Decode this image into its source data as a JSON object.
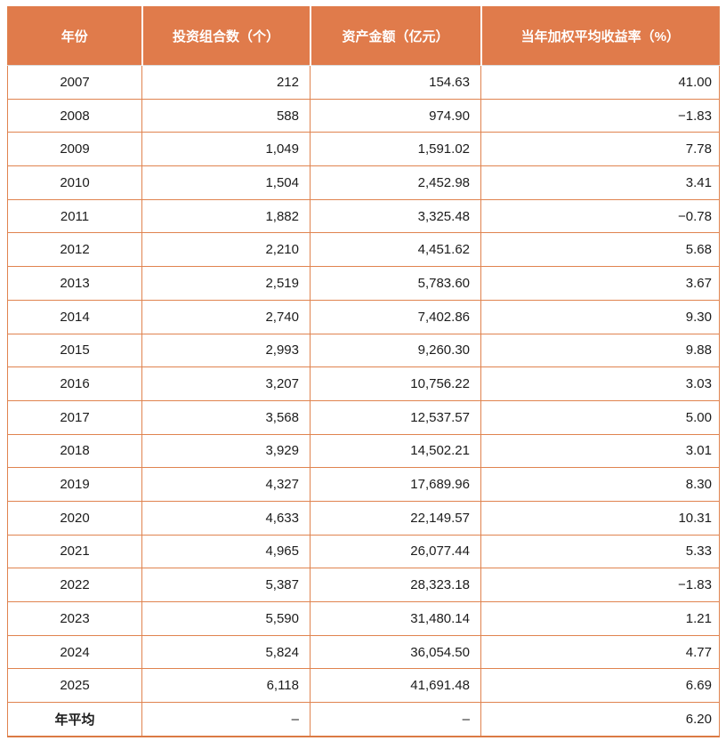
{
  "colors": {
    "header_bg": "#E07B4B",
    "header_text": "#FFFFFF",
    "grid_border": "#E0834F",
    "bottom_border": "#DB7A44",
    "body_text": "#1C1C1C"
  },
  "table": {
    "columns": [
      {
        "label": "年份"
      },
      {
        "label": "投资组合数（个）"
      },
      {
        "label": "资产金额（亿元）"
      },
      {
        "label": "当年加权平均收益率（%）"
      }
    ],
    "rows": [
      [
        "2007",
        "212",
        "154.63",
        "41.00"
      ],
      [
        "2008",
        "588",
        "974.90",
        "−1.83"
      ],
      [
        "2009",
        "1,049",
        "1,591.02",
        "7.78"
      ],
      [
        "2010",
        "1,504",
        "2,452.98",
        "3.41"
      ],
      [
        "2011",
        "1,882",
        "3,325.48",
        "−0.78"
      ],
      [
        "2012",
        "2,210",
        "4,451.62",
        "5.68"
      ],
      [
        "2013",
        "2,519",
        "5,783.60",
        "3.67"
      ],
      [
        "2014",
        "2,740",
        "7,402.86",
        "9.30"
      ],
      [
        "2015",
        "2,993",
        "9,260.30",
        "9.88"
      ],
      [
        "2016",
        "3,207",
        "10,756.22",
        "3.03"
      ],
      [
        "2017",
        "3,568",
        "12,537.57",
        "5.00"
      ],
      [
        "2018",
        "3,929",
        "14,502.21",
        "3.01"
      ],
      [
        "2019",
        "4,327",
        "17,689.96",
        "8.30"
      ],
      [
        "2020",
        "4,633",
        "22,149.57",
        "10.31"
      ],
      [
        "2021",
        "4,965",
        "26,077.44",
        "5.33"
      ],
      [
        "2022",
        "5,387",
        "28,323.18",
        "−1.83"
      ],
      [
        "2023",
        "5,590",
        "31,480.14",
        "1.21"
      ],
      [
        "2024",
        "5,824",
        "36,054.50",
        "4.77"
      ],
      [
        "2025",
        "6,118",
        "41,691.48",
        "6.69"
      ],
      [
        "年平均",
        "–",
        "–",
        "6.20"
      ]
    ]
  },
  "chart_data": {
    "type": "table",
    "title": "",
    "columns": [
      "年份",
      "投资组合数（个）",
      "资产金额（亿元）",
      "当年加权平均收益率（%）"
    ],
    "categories": [
      "2007",
      "2008",
      "2009",
      "2010",
      "2011",
      "2012",
      "2013",
      "2014",
      "2015",
      "2016",
      "2017",
      "2018",
      "2019",
      "2020",
      "2021",
      "2022",
      "2023",
      "2024",
      "2025",
      "年平均"
    ],
    "series": [
      {
        "name": "投资组合数（个）",
        "values": [
          212,
          588,
          1049,
          1504,
          1882,
          2210,
          2519,
          2740,
          2993,
          3207,
          3568,
          3929,
          4327,
          4633,
          4965,
          5387,
          5590,
          5824,
          6118,
          null
        ]
      },
      {
        "name": "资产金额（亿元）",
        "values": [
          154.63,
          974.9,
          1591.02,
          2452.98,
          3325.48,
          4451.62,
          5783.6,
          7402.86,
          9260.3,
          10756.22,
          12537.57,
          14502.21,
          17689.96,
          22149.57,
          26077.44,
          28323.18,
          31480.14,
          36054.5,
          41691.48,
          null
        ]
      },
      {
        "name": "当年加权平均收益率（%）",
        "values": [
          41.0,
          -1.83,
          7.78,
          3.41,
          -0.78,
          5.68,
          3.67,
          9.3,
          9.88,
          3.03,
          5.0,
          3.01,
          8.3,
          10.31,
          5.33,
          -1.83,
          1.21,
          4.77,
          6.69,
          6.2
        ]
      }
    ],
    "notes": "年平均 row shows – for count and amount columns; average return 6.20%"
  }
}
